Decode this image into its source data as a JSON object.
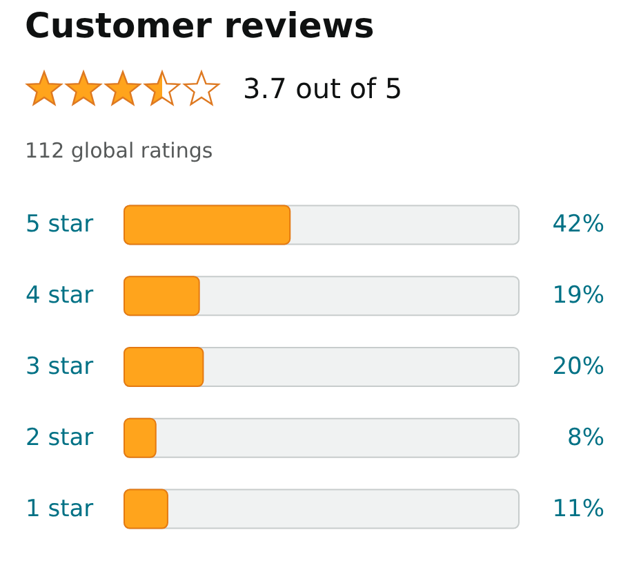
{
  "chart_data": {
    "type": "bar",
    "orientation": "horizontal",
    "title": "Customer reviews",
    "subtitle": "3.7 out of 5",
    "annotations": [
      "112 global ratings"
    ],
    "categories": [
      "5 star",
      "4 star",
      "3 star",
      "2 star",
      "1 star"
    ],
    "values": [
      42,
      19,
      20,
      8,
      11
    ],
    "value_labels": [
      "42%",
      "19%",
      "20%",
      "8%",
      "11%"
    ],
    "color": "#ffa41c",
    "xlim": [
      0,
      100
    ],
    "tick_labels": "y"
  }
}
